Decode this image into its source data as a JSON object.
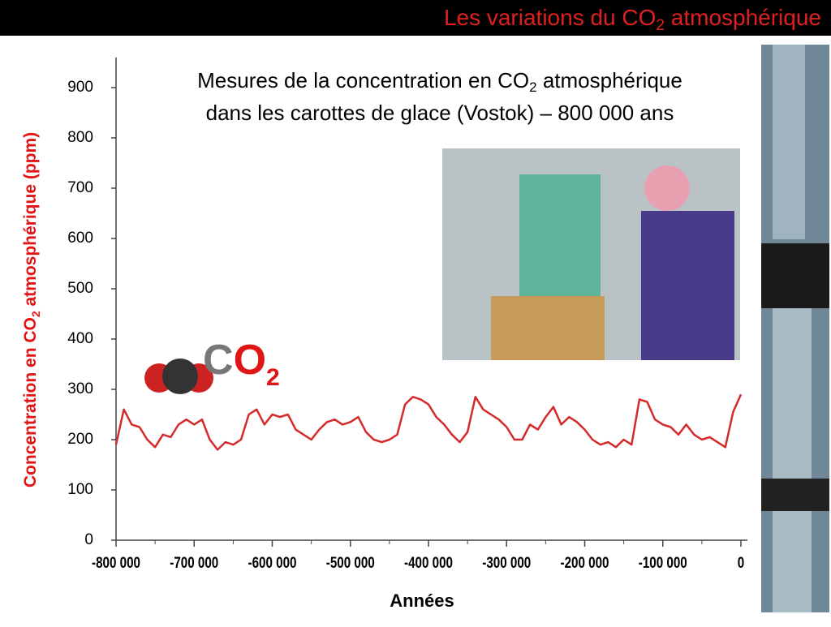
{
  "header": {
    "title": [
      "Les variations du CO",
      "2",
      " atmosphérique"
    ]
  },
  "logo": [
    "C",
    "O",
    "2"
  ],
  "chart_data": {
    "type": "line",
    "title": [
      "Mesures de la concentration en CO",
      "2",
      " atmosphérique"
    ],
    "subtitle": "dans les carottes de glace (Vostok) – 800 000 ans",
    "y_label": [
      "Concentration en CO",
      "2",
      " atmosphérique (ppm)"
    ],
    "x_label": "Années",
    "x": [
      -800000,
      -790000,
      -780000,
      -770000,
      -760000,
      -750000,
      -740000,
      -730000,
      -720000,
      -710000,
      -700000,
      -690000,
      -680000,
      -670000,
      -660000,
      -650000,
      -640000,
      -630000,
      -620000,
      -610000,
      -600000,
      -590000,
      -580000,
      -570000,
      -560000,
      -550000,
      -540000,
      -530000,
      -520000,
      -510000,
      -500000,
      -490000,
      -480000,
      -470000,
      -460000,
      -450000,
      -440000,
      -430000,
      -420000,
      -410000,
      -400000,
      -390000,
      -380000,
      -370000,
      -360000,
      -350000,
      -340000,
      -330000,
      -320000,
      -310000,
      -300000,
      -290000,
      -280000,
      -270000,
      -260000,
      -250000,
      -240000,
      -230000,
      -220000,
      -210000,
      -200000,
      -190000,
      -180000,
      -170000,
      -160000,
      -150000,
      -140000,
      -130000,
      -120000,
      -110000,
      -100000,
      -90000,
      -80000,
      -70000,
      -60000,
      -50000,
      -40000,
      -30000,
      -20000,
      -10000,
      0
    ],
    "series": [
      {
        "name": "CO2",
        "color": "#d42a2a",
        "values": [
          190,
          260,
          230,
          225,
          200,
          185,
          210,
          205,
          230,
          240,
          230,
          240,
          200,
          180,
          195,
          190,
          200,
          250,
          260,
          230,
          250,
          245,
          250,
          220,
          210,
          200,
          220,
          235,
          240,
          230,
          235,
          245,
          215,
          200,
          195,
          200,
          210,
          270,
          285,
          280,
          270,
          245,
          230,
          210,
          195,
          215,
          285,
          260,
          250,
          240,
          225,
          200,
          200,
          230,
          220,
          245,
          265,
          230,
          245,
          235,
          220,
          200,
          190,
          195,
          185,
          200,
          190,
          280,
          275,
          240,
          230,
          225,
          210,
          230,
          210,
          200,
          205,
          195,
          185,
          255,
          290
        ]
      }
    ],
    "xlim": [
      -800000,
      0
    ],
    "ylim": [
      0,
      960
    ],
    "xticks": [
      {
        "value": -800000,
        "label": "-800 000"
      },
      {
        "value": -700000,
        "label": "-700 000"
      },
      {
        "value": -600000,
        "label": "-600 000"
      },
      {
        "value": -500000,
        "label": "-500 000"
      },
      {
        "value": -400000,
        "label": "-400 000"
      },
      {
        "value": -300000,
        "label": "-300 000"
      },
      {
        "value": -200000,
        "label": "-200 000"
      },
      {
        "value": -100000,
        "label": "-100 000"
      },
      0
    ],
    "xminorticks": [
      -750000,
      -650000,
      -550000,
      -450000,
      -350000,
      -250000,
      -150000,
      -50000
    ],
    "yticks": [
      0,
      100,
      200,
      300,
      400,
      500,
      600,
      700,
      800,
      900
    ]
  }
}
